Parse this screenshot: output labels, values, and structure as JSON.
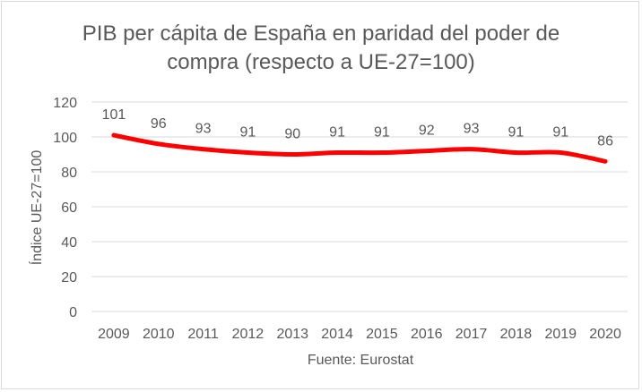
{
  "chart_data": {
    "type": "line",
    "title_line1": "PIB per cápita de España en paridad del poder de",
    "title_line2": "compra (respecto a UE-27=100)",
    "xlabel": "Fuente: Eurostat",
    "ylabel": "Índice UE-27=100",
    "categories": [
      "2009",
      "2010",
      "2011",
      "2012",
      "2013",
      "2014",
      "2015",
      "2016",
      "2017",
      "2018",
      "2019",
      "2020"
    ],
    "series": [
      {
        "values": [
          101,
          96,
          93,
          91,
          90,
          91,
          91,
          92,
          93,
          91,
          91,
          86
        ],
        "color": "#ff0000"
      }
    ],
    "ylim": [
      0,
      120
    ],
    "yticks": [
      0,
      20,
      40,
      60,
      80,
      100,
      120
    ],
    "grid": true,
    "smooth": true,
    "data_labels": true
  }
}
